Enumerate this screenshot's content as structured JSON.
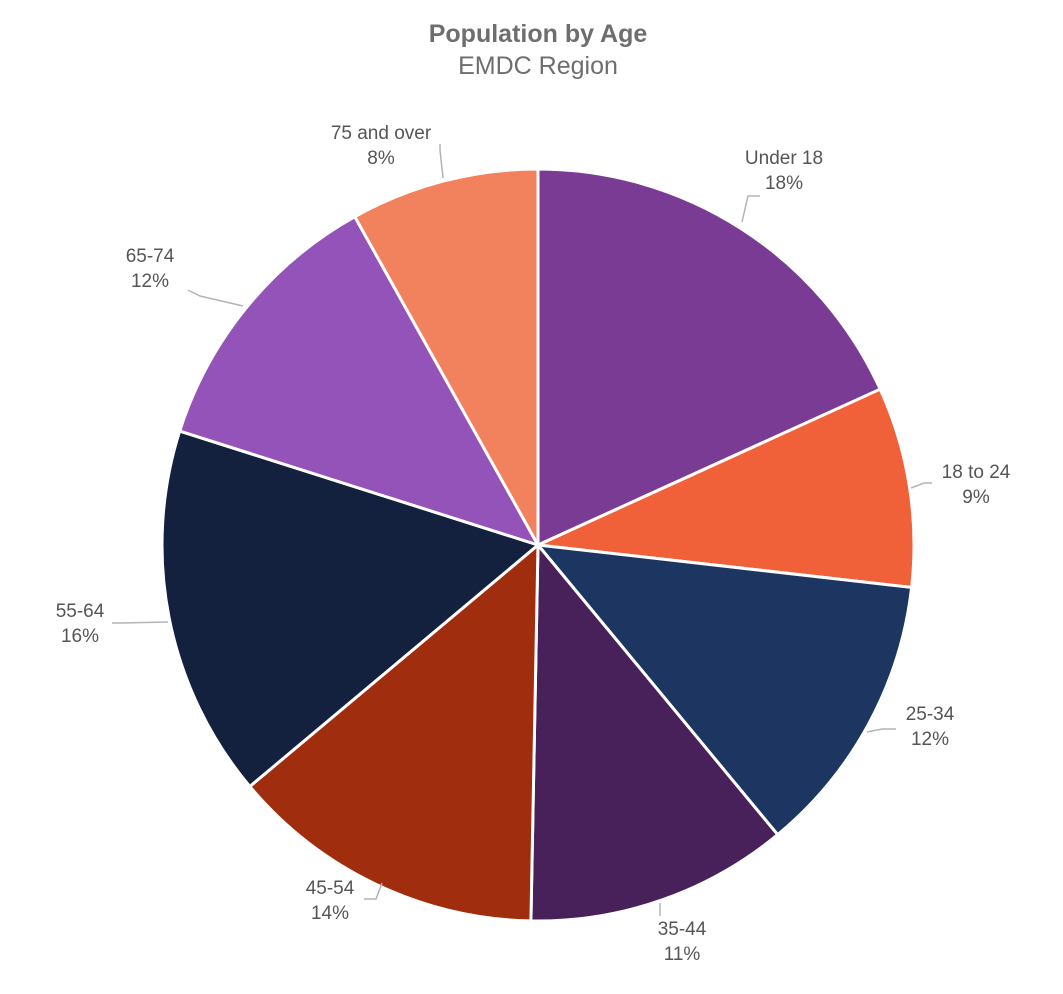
{
  "chart_data": {
    "type": "pie",
    "title": "Population by Age",
    "subtitle": "EMDC Region",
    "start_angle_deg": 0,
    "direction": "clockwise",
    "slices": [
      {
        "label": "Under 18",
        "percent_label": "18%",
        "value": 18.2,
        "color": "#7a3b94"
      },
      {
        "label": "18 to 24",
        "percent_label": "9%",
        "value": 8.6,
        "color": "#f06039"
      },
      {
        "label": "25-34",
        "percent_label": "12%",
        "value": 12.2,
        "color": "#1c3561"
      },
      {
        "label": "35-44",
        "percent_label": "11%",
        "value": 11.3,
        "color": "#48215a"
      },
      {
        "label": "45-54",
        "percent_label": "14%",
        "value": 13.6,
        "color": "#a02d0d"
      },
      {
        "label": "55-64",
        "percent_label": "16%",
        "value": 16.0,
        "color": "#13213e"
      },
      {
        "label": "65-74",
        "percent_label": "12%",
        "value": 12.0,
        "color": "#9453b8"
      },
      {
        "label": "75 and over",
        "percent_label": "8%",
        "value": 8.1,
        "color": "#f2815e"
      }
    ]
  }
}
